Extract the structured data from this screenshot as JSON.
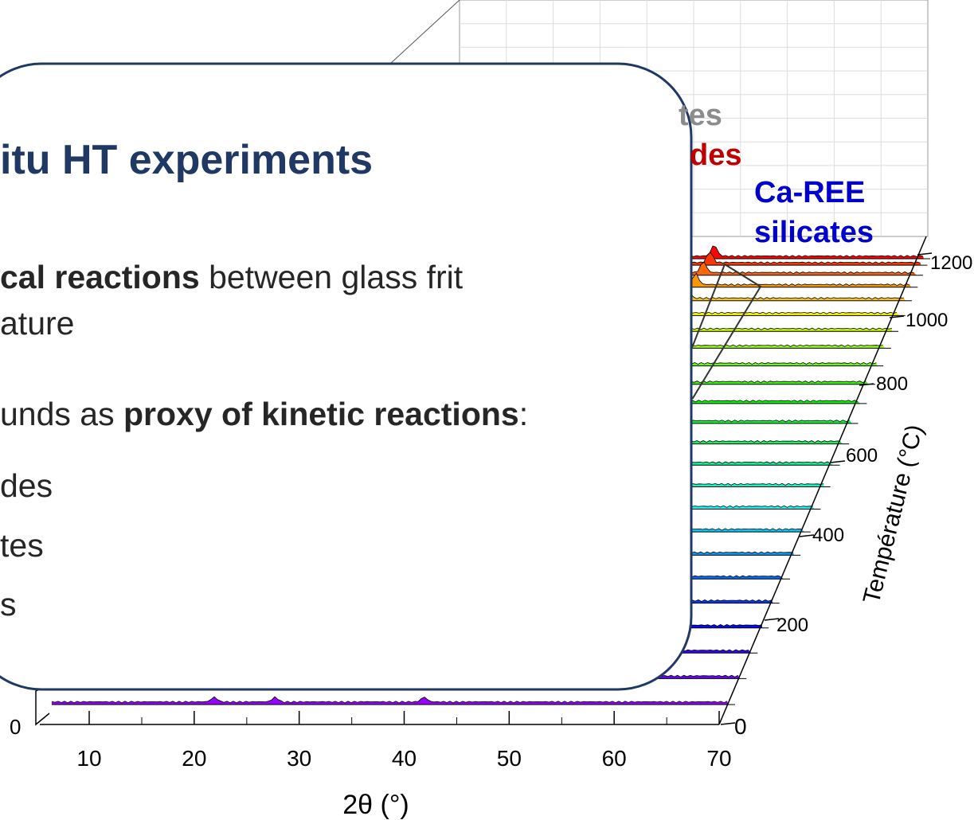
{
  "panel": {
    "title": "itu HT experiments",
    "lines": [
      [
        {
          "text": "cal reactions",
          "bold": true
        },
        {
          "text": " between glass frit"
        }
      ],
      [
        {
          "text": "ature"
        }
      ],
      [
        {
          "text": "unds as "
        },
        {
          "text": "proxy of kinetic reactions",
          "bold": true
        },
        {
          "text": ":"
        }
      ],
      [
        {
          "text": "des"
        }
      ],
      [
        {
          "text": "tes"
        }
      ],
      [
        {
          "text": "s"
        }
      ]
    ]
  },
  "chart": {
    "xticks": [
      10,
      20,
      30,
      40,
      50,
      60,
      70
    ],
    "x_label": "2θ (°)",
    "temp_ticks": [
      0,
      200,
      400,
      600,
      800,
      1000,
      1200
    ],
    "temp_label": "Température (°C)",
    "z_tick": 0,
    "annotations": [
      {
        "text": "tes",
        "color": "#8c8c8c"
      },
      {
        "text": "des",
        "color": "#c00000"
      },
      {
        "text": "Ca-REE",
        "color": "#0000cc"
      },
      {
        "text": "silicates",
        "color": "#0000cc"
      }
    ]
  }
}
